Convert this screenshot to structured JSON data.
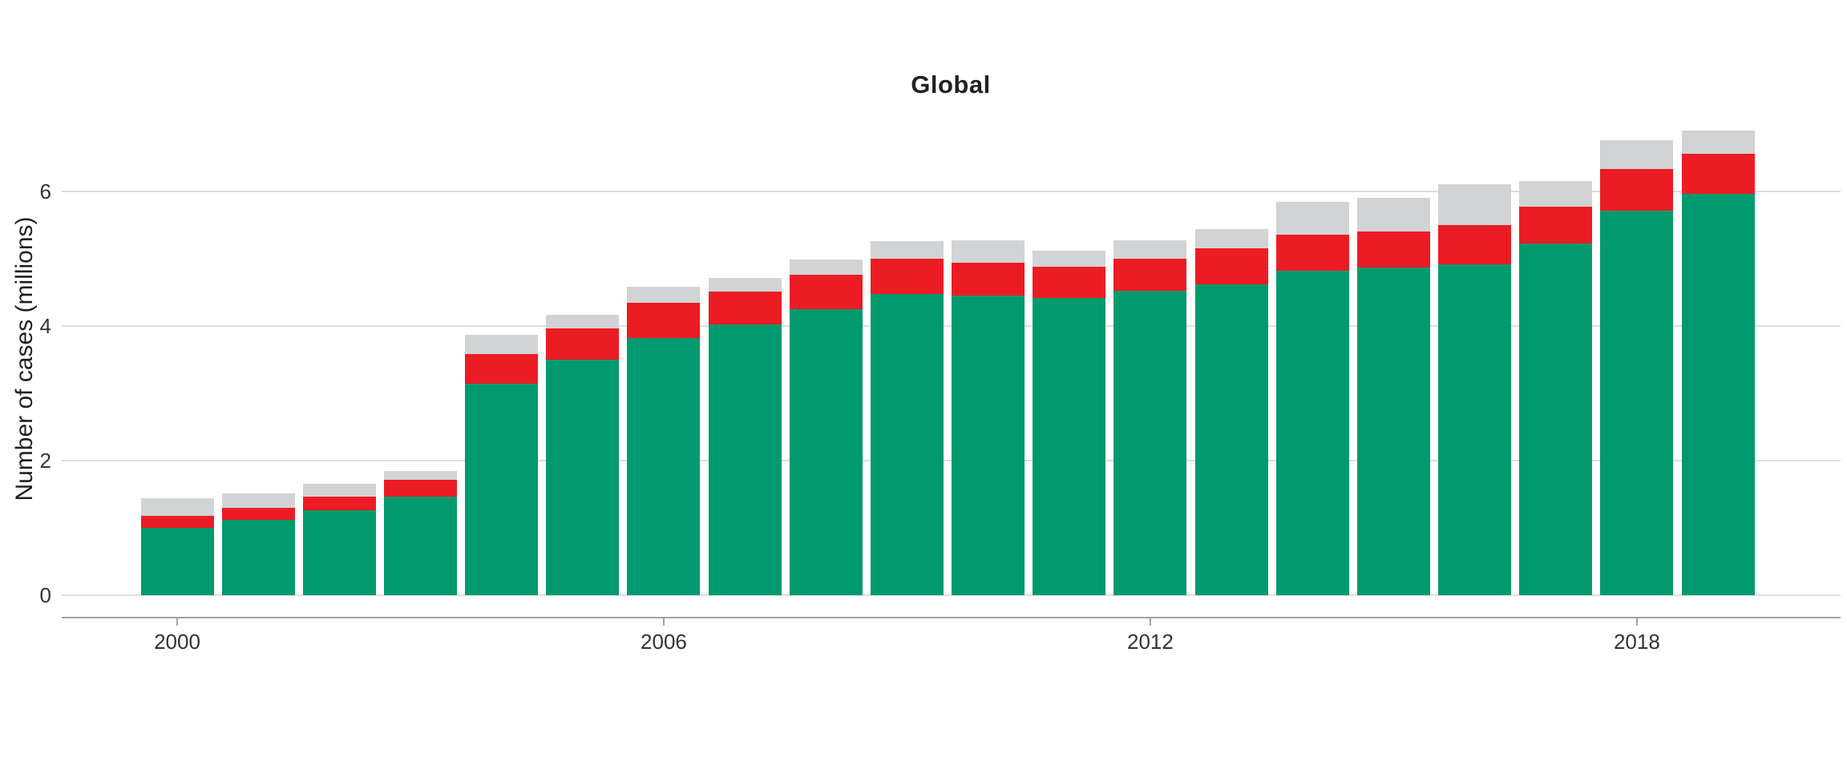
{
  "chart_data": {
    "type": "bar",
    "stacked": true,
    "title": "Global",
    "xlabel": "",
    "ylabel": "Number of cases (millions)",
    "categories": [
      2000,
      2001,
      2002,
      2003,
      2004,
      2005,
      2006,
      2007,
      2008,
      2009,
      2010,
      2011,
      2012,
      2013,
      2014,
      2015,
      2016,
      2017,
      2018,
      2019
    ],
    "series": [
      {
        "name": "green-bottom-segment",
        "color": "#009a6e",
        "values": [
          1.0,
          1.12,
          1.26,
          1.47,
          3.14,
          3.5,
          3.82,
          4.02,
          4.25,
          4.48,
          4.45,
          4.42,
          4.52,
          4.62,
          4.82,
          4.87,
          4.92,
          5.23,
          5.71,
          5.97
        ]
      },
      {
        "name": "red-middle-segment",
        "color": "#ec1c24",
        "values": [
          0.18,
          0.18,
          0.2,
          0.24,
          0.44,
          0.47,
          0.52,
          0.49,
          0.51,
          0.52,
          0.49,
          0.46,
          0.48,
          0.53,
          0.54,
          0.54,
          0.58,
          0.54,
          0.62,
          0.59
        ]
      },
      {
        "name": "gray-top-segment",
        "color": "#d1d3d4",
        "values": [
          0.26,
          0.21,
          0.2,
          0.13,
          0.29,
          0.2,
          0.24,
          0.2,
          0.23,
          0.26,
          0.33,
          0.24,
          0.27,
          0.29,
          0.48,
          0.49,
          0.61,
          0.38,
          0.43,
          0.35
        ]
      }
    ],
    "xticks": [
      2000,
      2006,
      2012,
      2018
    ],
    "yticks": [
      0,
      2,
      4,
      6
    ],
    "ylim": [
      0,
      7.2
    ],
    "grid": "horizontal-major-only",
    "legend": "none",
    "background": "#ffffff"
  }
}
